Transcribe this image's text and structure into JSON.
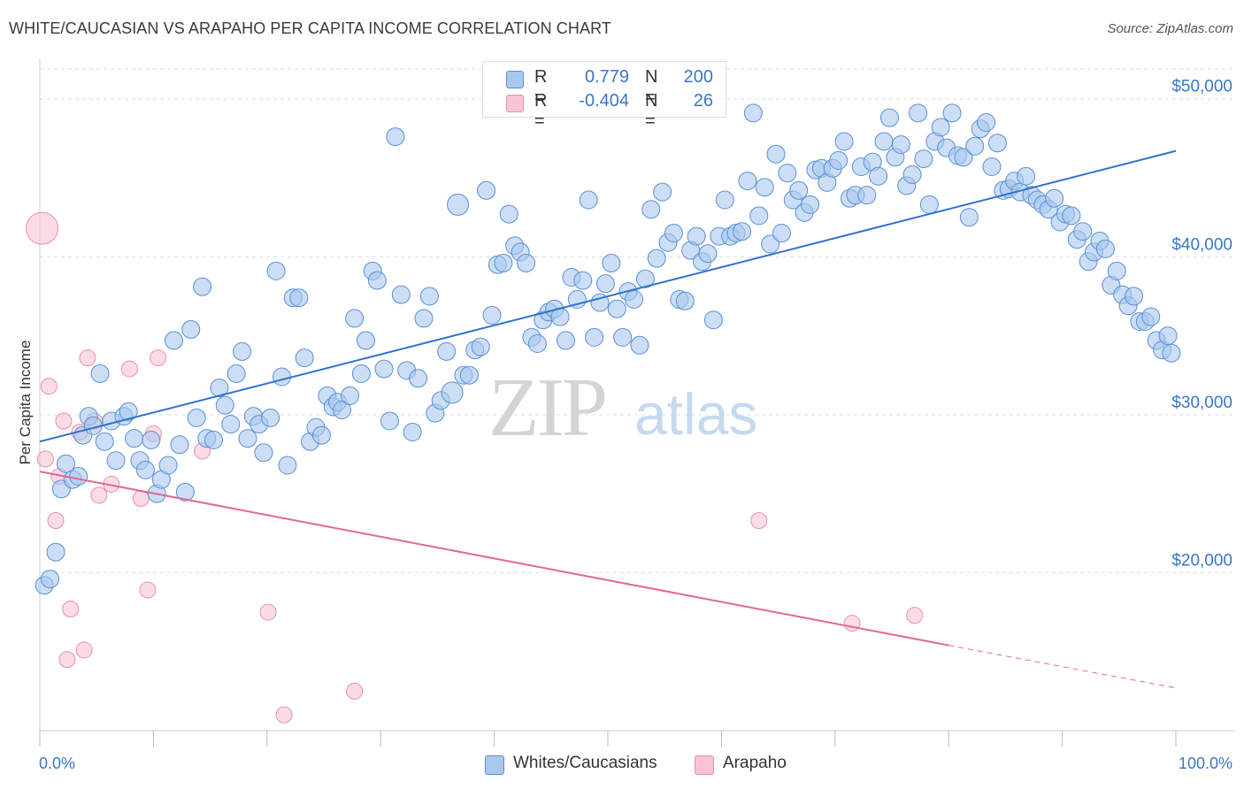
{
  "title": "WHITE/CAUCASIAN VS ARAPAHO PER CAPITA INCOME CORRELATION CHART",
  "source": "Source: ZipAtlas.com",
  "watermark": {
    "zip": "ZIP",
    "atlas": "atlas"
  },
  "colors": {
    "blue_fill": "#a9c8ee",
    "blue_stroke": "#5a8fd6",
    "blue_line": "#2f6fcf",
    "pink_fill": "#f8c4d3",
    "pink_stroke": "#e890a8",
    "pink_line": "#e06891",
    "axis_label": "#3a76c8",
    "grid": "#dddddd"
  },
  "legend": {
    "rows": [
      {
        "r_label": "R =",
        "r_value": "0.779",
        "n_label": "N =",
        "n_value": "200"
      },
      {
        "r_label": "R =",
        "r_value": "-0.404",
        "n_label": "N =",
        "n_value": "26"
      }
    ]
  },
  "bottom_legend": {
    "items": [
      {
        "label": "Whites/Caucasians"
      },
      {
        "label": "Arapaho"
      }
    ]
  },
  "chart_data": {
    "type": "scatter",
    "title": "WHITE/CAUCASIAN VS ARAPAHO PER CAPITA INCOME CORRELATION CHART",
    "xlabel": "",
    "ylabel": "Per Capita Income",
    "xlim": [
      0,
      100
    ],
    "ylim": [
      10000,
      52000
    ],
    "x_tick_labels": [
      "0.0%",
      "100.0%"
    ],
    "y_ticks": [
      20000,
      30000,
      40000,
      50000
    ],
    "y_tick_labels": [
      "$20,000",
      "$30,000",
      "$40,000",
      "$50,000"
    ],
    "grid": true,
    "legend_position": "top-center",
    "series": [
      {
        "name": "Whites/Caucasians",
        "color": "#a9c8ee",
        "r": 0.779,
        "n": 200,
        "trend": {
          "x": [
            0,
            100
          ],
          "y": [
            28300,
            46700
          ]
        },
        "points": [
          [
            0.4,
            19200
          ],
          [
            0.9,
            19600
          ],
          [
            1.4,
            21300
          ],
          [
            1.9,
            25300
          ],
          [
            2.3,
            26900
          ],
          [
            2.9,
            25900
          ],
          [
            3.4,
            26100
          ],
          [
            3.8,
            28700
          ],
          [
            4.3,
            29900
          ],
          [
            4.7,
            29300
          ],
          [
            5.3,
            32600
          ],
          [
            5.7,
            28300
          ],
          [
            6.3,
            29600
          ],
          [
            6.7,
            27100
          ],
          [
            7.4,
            29900
          ],
          [
            7.8,
            30200
          ],
          [
            8.3,
            28500
          ],
          [
            8.8,
            27100
          ],
          [
            9.3,
            26500
          ],
          [
            9.8,
            28400
          ],
          [
            10.3,
            25000
          ],
          [
            10.7,
            25900
          ],
          [
            11.3,
            26800
          ],
          [
            11.8,
            34700
          ],
          [
            12.3,
            28100
          ],
          [
            12.8,
            25100
          ],
          [
            13.3,
            35400
          ],
          [
            13.8,
            29800
          ],
          [
            14.3,
            38100
          ],
          [
            14.7,
            28500
          ],
          [
            15.3,
            28400
          ],
          [
            15.8,
            31700
          ],
          [
            16.3,
            30600
          ],
          [
            16.8,
            29400
          ],
          [
            17.3,
            32600
          ],
          [
            17.8,
            34000
          ],
          [
            18.3,
            28500
          ],
          [
            18.8,
            29900
          ],
          [
            19.3,
            29400
          ],
          [
            19.7,
            27600
          ],
          [
            20.3,
            29800
          ],
          [
            20.8,
            39100
          ],
          [
            21.3,
            32400
          ],
          [
            21.8,
            26800
          ],
          [
            22.3,
            37400
          ],
          [
            22.8,
            37400
          ],
          [
            23.3,
            33600
          ],
          [
            23.8,
            28300
          ],
          [
            24.3,
            29200
          ],
          [
            24.8,
            28700
          ],
          [
            25.3,
            31200
          ],
          [
            25.8,
            30500
          ],
          [
            26.2,
            30800
          ],
          [
            26.6,
            30300
          ],
          [
            27.3,
            31200
          ],
          [
            27.7,
            36100
          ],
          [
            28.3,
            32600
          ],
          [
            28.7,
            34700
          ],
          [
            29.3,
            39100
          ],
          [
            29.7,
            38500
          ],
          [
            30.3,
            32900
          ],
          [
            30.8,
            29600
          ],
          [
            31.3,
            47600
          ],
          [
            31.8,
            37600
          ],
          [
            32.3,
            32800
          ],
          [
            32.8,
            28900
          ],
          [
            33.3,
            32300
          ],
          [
            33.8,
            36100
          ],
          [
            34.3,
            37500
          ],
          [
            34.8,
            30100
          ],
          [
            35.3,
            30900
          ],
          [
            35.8,
            34000
          ],
          [
            36.3,
            31400
          ],
          [
            36.8,
            43300
          ],
          [
            37.3,
            32500
          ],
          [
            37.8,
            32500
          ],
          [
            38.3,
            34100
          ],
          [
            38.8,
            34300
          ],
          [
            39.3,
            44200
          ],
          [
            39.8,
            36300
          ],
          [
            40.3,
            39500
          ],
          [
            40.8,
            39600
          ],
          [
            41.3,
            42700
          ],
          [
            41.8,
            40700
          ],
          [
            42.3,
            40300
          ],
          [
            42.8,
            39600
          ],
          [
            43.3,
            34900
          ],
          [
            43.8,
            34500
          ],
          [
            44.3,
            36000
          ],
          [
            44.8,
            36500
          ],
          [
            45.3,
            36700
          ],
          [
            45.8,
            36200
          ],
          [
            46.3,
            34700
          ],
          [
            46.8,
            38700
          ],
          [
            47.3,
            37300
          ],
          [
            47.8,
            38500
          ],
          [
            48.3,
            43600
          ],
          [
            48.8,
            34900
          ],
          [
            49.3,
            37100
          ],
          [
            49.8,
            38300
          ],
          [
            50.3,
            39600
          ],
          [
            50.8,
            36700
          ],
          [
            51.3,
            34900
          ],
          [
            51.8,
            37800
          ],
          [
            52.3,
            37300
          ],
          [
            52.8,
            34400
          ],
          [
            53.3,
            38600
          ],
          [
            53.8,
            43000
          ],
          [
            54.3,
            39900
          ],
          [
            54.8,
            44100
          ],
          [
            55.3,
            40900
          ],
          [
            55.8,
            41500
          ],
          [
            56.3,
            37300
          ],
          [
            56.8,
            37200
          ],
          [
            57.3,
            40400
          ],
          [
            57.8,
            41300
          ],
          [
            58.3,
            39700
          ],
          [
            58.8,
            40200
          ],
          [
            59.3,
            36000
          ],
          [
            59.8,
            41300
          ],
          [
            60.3,
            43600
          ],
          [
            60.8,
            41300
          ],
          [
            61.3,
            41500
          ],
          [
            61.8,
            41600
          ],
          [
            62.3,
            44800
          ],
          [
            62.8,
            49100
          ],
          [
            63.3,
            42600
          ],
          [
            63.8,
            44400
          ],
          [
            64.3,
            40800
          ],
          [
            64.8,
            46500
          ],
          [
            65.3,
            41500
          ],
          [
            65.8,
            45300
          ],
          [
            66.3,
            43600
          ],
          [
            66.8,
            44200
          ],
          [
            67.3,
            42800
          ],
          [
            67.8,
            43300
          ],
          [
            68.3,
            45500
          ],
          [
            68.8,
            45600
          ],
          [
            69.3,
            44700
          ],
          [
            69.8,
            45600
          ],
          [
            70.3,
            46100
          ],
          [
            70.8,
            47300
          ],
          [
            71.3,
            43700
          ],
          [
            71.8,
            43900
          ],
          [
            72.3,
            45700
          ],
          [
            72.8,
            43900
          ],
          [
            73.3,
            46000
          ],
          [
            73.8,
            45100
          ],
          [
            74.3,
            47300
          ],
          [
            74.8,
            48800
          ],
          [
            75.3,
            46300
          ],
          [
            75.8,
            47100
          ],
          [
            76.3,
            44500
          ],
          [
            76.8,
            45200
          ],
          [
            77.3,
            49100
          ],
          [
            77.8,
            46200
          ],
          [
            78.3,
            43300
          ],
          [
            78.8,
            47300
          ],
          [
            79.3,
            48200
          ],
          [
            79.8,
            46900
          ],
          [
            80.3,
            49100
          ],
          [
            80.8,
            46400
          ],
          [
            81.3,
            46300
          ],
          [
            81.8,
            42500
          ],
          [
            82.3,
            47000
          ],
          [
            82.8,
            48100
          ],
          [
            83.3,
            48500
          ],
          [
            83.8,
            45700
          ],
          [
            84.3,
            47200
          ],
          [
            84.8,
            44200
          ],
          [
            85.3,
            44300
          ],
          [
            85.8,
            44800
          ],
          [
            86.3,
            44100
          ],
          [
            86.8,
            45100
          ],
          [
            87.3,
            43900
          ],
          [
            87.8,
            43600
          ],
          [
            88.3,
            43300
          ],
          [
            88.8,
            43000
          ],
          [
            89.3,
            43700
          ],
          [
            89.8,
            42200
          ],
          [
            90.3,
            42700
          ],
          [
            90.8,
            42600
          ],
          [
            91.3,
            41100
          ],
          [
            91.8,
            41600
          ],
          [
            92.3,
            39700
          ],
          [
            92.8,
            40300
          ],
          [
            93.3,
            41000
          ],
          [
            93.8,
            40500
          ],
          [
            94.3,
            38200
          ],
          [
            94.8,
            39100
          ],
          [
            95.3,
            37600
          ],
          [
            95.8,
            36900
          ],
          [
            96.3,
            37500
          ],
          [
            96.8,
            35900
          ],
          [
            97.3,
            35900
          ],
          [
            97.8,
            36200
          ],
          [
            98.3,
            34700
          ],
          [
            98.8,
            34100
          ],
          [
            99.3,
            35000
          ],
          [
            99.6,
            33900
          ]
        ]
      },
      {
        "name": "Arapaho",
        "color": "#f8c4d3",
        "r": -0.404,
        "n": 26,
        "trend": {
          "x": [
            0,
            80
          ],
          "y": [
            26400,
            15400
          ],
          "dashed_to": [
            100,
            12700
          ]
        },
        "points": [
          [
            0.2,
            41800
          ],
          [
            0.5,
            27200
          ],
          [
            0.8,
            31800
          ],
          [
            1.4,
            23300
          ],
          [
            1.7,
            26100
          ],
          [
            2.1,
            29600
          ],
          [
            2.4,
            14500
          ],
          [
            2.7,
            17700
          ],
          [
            3.5,
            28900
          ],
          [
            3.9,
            15100
          ],
          [
            4.2,
            33600
          ],
          [
            4.8,
            29600
          ],
          [
            5.2,
            24900
          ],
          [
            6.3,
            25600
          ],
          [
            7.9,
            32900
          ],
          [
            8.9,
            24700
          ],
          [
            9.5,
            18900
          ],
          [
            10.0,
            28800
          ],
          [
            10.4,
            33600
          ],
          [
            14.3,
            27700
          ],
          [
            20.1,
            17500
          ],
          [
            21.5,
            11000
          ],
          [
            27.7,
            12500
          ],
          [
            63.3,
            23300
          ],
          [
            71.5,
            16800
          ],
          [
            77.0,
            17300
          ]
        ]
      }
    ]
  }
}
